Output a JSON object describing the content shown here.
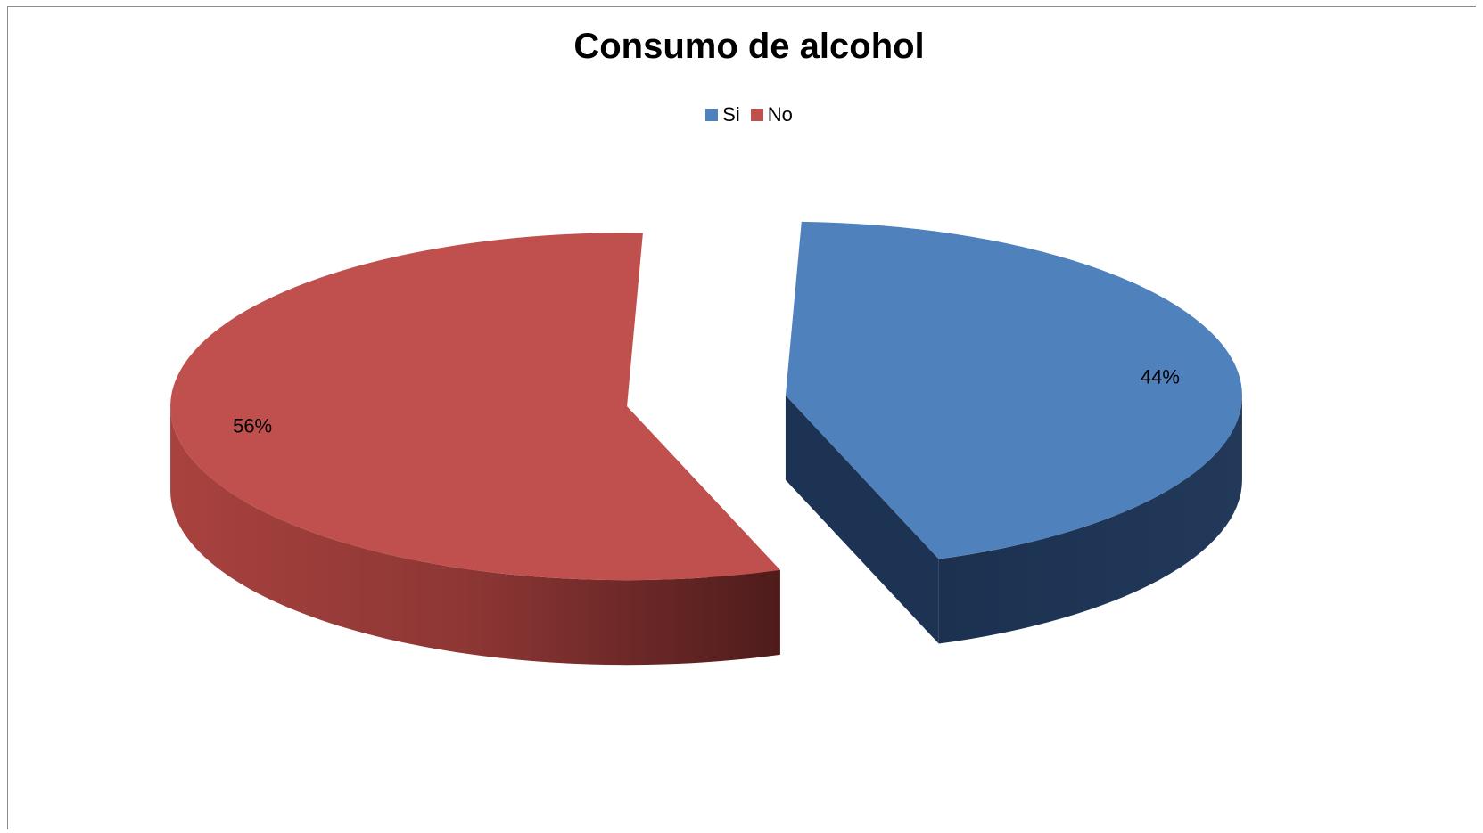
{
  "chart_data": {
    "type": "pie",
    "title": "Consumo de alcohol",
    "categories": [
      "Si",
      "No"
    ],
    "values": [
      44,
      56
    ],
    "data_labels": [
      "44%",
      "56%"
    ],
    "colors": [
      "#4f81bd",
      "#c0504d"
    ],
    "legend_placement": "top",
    "style": "3d-exploded"
  }
}
